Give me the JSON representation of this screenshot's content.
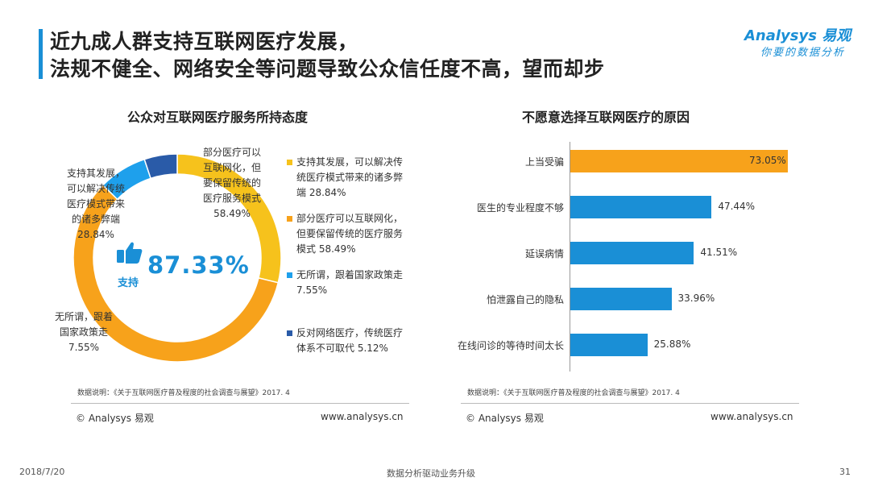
{
  "header": {
    "title_line1": "近九成人群支持互联网医疗发展，",
    "title_line2": "法规不健全、网络安全等问题导致公众信任度不高，望而却步",
    "logo_brand": "Analysys 易观",
    "logo_slogan": "你要的数据分析"
  },
  "left": {
    "title": "公众对互联网医疗服务所持态度",
    "center_percent": "87.33%",
    "center_label": "支持",
    "callouts": {
      "support": [
        "支持其发展，",
        "可以解决传统",
        "医疗模式带来",
        "的诸多弊端",
        "28.84%"
      ],
      "partial": [
        "部分医疗可以",
        "互联网化，但",
        "要保留传统的",
        "医疗服务模式",
        "58.49%"
      ],
      "indifferent": [
        "无所谓，跟着",
        "国家政策走",
        "7.55%"
      ]
    },
    "legend": [
      {
        "lines": [
          "支持其发展，可以解决传",
          "统医疗模式带来的诸多弊",
          "端 28.84%"
        ]
      },
      {
        "lines": [
          "部分医疗可以互联网化，",
          "但要保留传统的医疗服务",
          "模式 58.49%"
        ]
      },
      {
        "lines": [
          "无所谓，跟着国家政策走",
          "7.55%"
        ]
      },
      {
        "lines": [
          "反对网络医疗，传统医疗",
          "体系不可取代 5.12%"
        ]
      }
    ],
    "note": "数据说明：《关于互联网医疗普及程度的社会调查与展望》2017. 4",
    "copyright": "© Analysys 易观",
    "website": "www.analysys.cn"
  },
  "right": {
    "title": "不愿意选择互联网医疗的原因",
    "note": "数据说明：《关于互联网医疗普及程度的社会调查与展望》2017. 4",
    "copyright": "© Analysys 易观",
    "website": "www.analysys.cn"
  },
  "footer": {
    "date": "2018/7/20",
    "center": "数据分析驱动业务升级",
    "page": "31"
  },
  "colors": {
    "accent_blue": "#1a8fd6",
    "orange": "#f7a21b",
    "yellow": "#f6c21c",
    "light_blue": "#1ea0ec",
    "dark_blue": "#2a5ba8",
    "bar_blue": "#1a8fd6",
    "bar_orange": "#f7a21b"
  },
  "chart_data": [
    {
      "type": "pie",
      "title": "公众对互联网医疗服务所持态度",
      "donut": true,
      "slices": [
        {
          "name": "支持其发展，可以解决传统医疗模式带来的诸多弊端",
          "value": 28.84,
          "color": "#f6c21c"
        },
        {
          "name": "部分医疗可以互联网化，但要保留传统的医疗服务模式",
          "value": 58.49,
          "color": "#f7a21b"
        },
        {
          "name": "无所谓，跟着国家政策走",
          "value": 7.55,
          "color": "#1ea0ec"
        },
        {
          "name": "反对网络医疗，传统医疗体系不可取代",
          "value": 5.12,
          "color": "#2a5ba8"
        }
      ],
      "legend_placement": "right",
      "center_text": "87.33%"
    },
    {
      "type": "bar",
      "orientation": "horizontal",
      "title": "不愿意选择互联网医疗的原因",
      "categories": [
        "上当受骗",
        "医生的专业程度不够",
        "延误病情",
        "怕泄露自己的隐私",
        "在线问诊的等待时间太长"
      ],
      "values": [
        73.05,
        47.44,
        41.51,
        33.96,
        25.88
      ],
      "value_labels": [
        "73.05%",
        "47.44%",
        "41.51%",
        "33.96%",
        "25.88%"
      ],
      "unit": "%",
      "grid": false
    }
  ]
}
